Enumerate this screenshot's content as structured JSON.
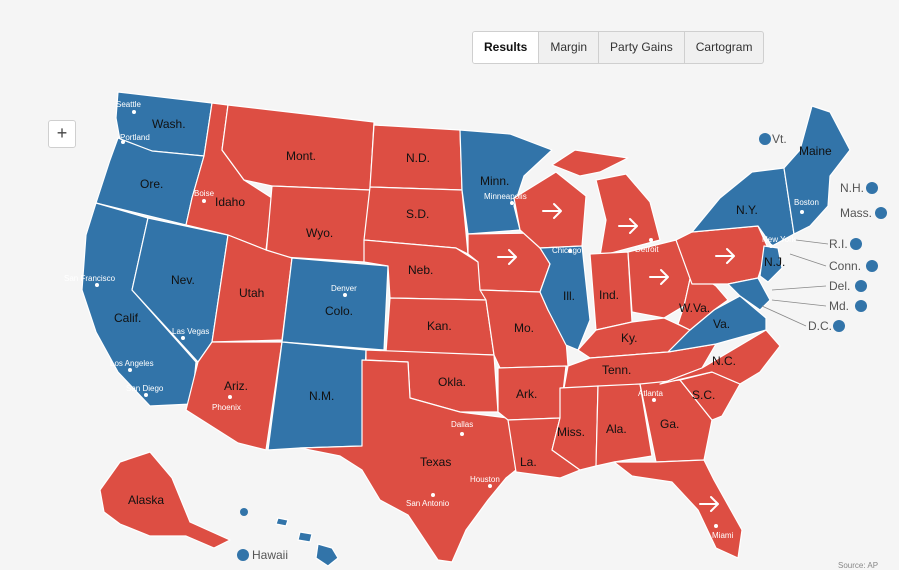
{
  "tabs": [
    {
      "label": "Results",
      "active": true
    },
    {
      "label": "Margin",
      "active": false
    },
    {
      "label": "Party Gains",
      "active": false
    },
    {
      "label": "Cartogram",
      "active": false
    }
  ],
  "zoom_label": "+",
  "colors": {
    "dem": "#3274a9",
    "rep": "#dd4e43",
    "background": "#f5f5f5"
  },
  "states": {
    "wash": "Wash.",
    "ore": "Ore.",
    "calif": "Calif.",
    "nev": "Nev.",
    "idaho": "Idaho",
    "mont": "Mont.",
    "wyo": "Wyo.",
    "utah": "Utah",
    "colo": "Colo.",
    "ariz": "Ariz.",
    "nm": "N.M.",
    "nd": "N.D.",
    "sd": "S.D.",
    "neb": "Neb.",
    "kan": "Kan.",
    "okla": "Okla.",
    "texas": "Texas",
    "minn": "Minn.",
    "mo": "Mo.",
    "ark": "Ark.",
    "la": "La.",
    "ill": "Ill.",
    "ind": "Ind.",
    "ky": "Ky.",
    "tenn": "Tenn.",
    "miss": "Miss.",
    "ala": "Ala.",
    "ga": "Ga.",
    "sc": "S.C.",
    "nc": "N.C.",
    "va": "Va.",
    "wva": "W.Va.",
    "ny": "N.Y.",
    "nj": "N.J.",
    "maine": "Maine",
    "alaska": "Alaska"
  },
  "outside_labels": {
    "vt": "Vt.",
    "nh": "N.H.",
    "mass": "Mass.",
    "ri": "R.I.",
    "conn": "Conn.",
    "del": "Del.",
    "md": "Md.",
    "dc": "D.C.",
    "hawaii": "Hawaii"
  },
  "cities": {
    "seattle": "Seattle",
    "portland": "Portland",
    "boise": "Boise",
    "san_francisco": "San Francisco",
    "las_vegas": "Las Vegas",
    "los_angeles": "Los Angeles",
    "san_diego": "San Diego",
    "phoenix": "Phoenix",
    "denver": "Denver",
    "minneapolis": "Minneapolis",
    "chicago": "Chicago",
    "detroit": "Detroit",
    "new_york": "New York",
    "boston": "Boston",
    "dallas": "Dallas",
    "houston": "Houston",
    "san_antonio": "San Antonio",
    "atlanta": "Atlanta",
    "miami": "Miami"
  },
  "party_gain_arrows": [
    "Iowa",
    "Wis.",
    "Mich.",
    "Ohio",
    "Pa.",
    "Fla."
  ],
  "source": "Source: AP"
}
